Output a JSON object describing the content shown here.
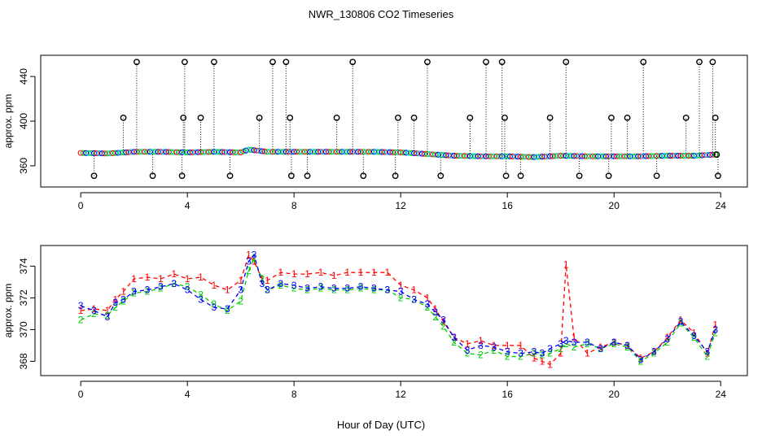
{
  "title": "NWR_130806  CO2 Timeseries",
  "xlabel": "Hour of Day (UTC)",
  "chart_data": [
    {
      "type": "scatter",
      "panel": "top",
      "ylabel": "approx. ppm",
      "xlim": [
        -1.5,
        25.0
      ],
      "ylim": [
        341,
        459
      ],
      "xticks": [
        0,
        4,
        8,
        12,
        16,
        20,
        24
      ],
      "yticks": [
        360,
        400,
        440
      ],
      "baseline_series": [
        {
          "name": "baseline",
          "x": [
            0,
            1,
            2,
            3,
            4,
            5,
            6,
            6.3,
            7,
            8,
            9,
            10,
            11,
            12,
            13,
            14,
            15,
            16,
            17,
            18,
            19,
            20,
            21,
            22,
            23,
            23.8
          ],
          "y": [
            371.5,
            371,
            372.5,
            372.5,
            372,
            372.5,
            372,
            374.5,
            372.5,
            372.5,
            372.5,
            372.5,
            372.5,
            372,
            370.5,
            369,
            368.5,
            368.5,
            367.8,
            369,
            368.5,
            368.5,
            368.5,
            369,
            369,
            370
          ]
        }
      ],
      "outliers": {
        "x": [
          0.5,
          1.6,
          2.1,
          2.7,
          3.8,
          3.85,
          3.9,
          4.5,
          5.0,
          5.6,
          6.7,
          7.2,
          7.7,
          7.85,
          7.9,
          8.5,
          9.6,
          10.2,
          10.6,
          11.8,
          11.9,
          12.5,
          13.0,
          13.5,
          14.6,
          15.2,
          15.8,
          15.9,
          15.95,
          16.5,
          17.6,
          18.2,
          18.7,
          19.8,
          19.9,
          20.5,
          21.1,
          21.6,
          22.7,
          23.2,
          23.7,
          23.8,
          23.85,
          23.9
        ],
        "y": [
          351,
          403,
          453,
          351,
          351,
          403,
          453,
          403,
          453,
          351,
          403,
          453,
          453,
          403,
          351,
          351,
          403,
          453,
          351,
          351,
          403,
          403,
          453,
          351,
          403,
          453,
          453,
          403,
          351,
          351,
          403,
          453,
          351,
          351,
          403,
          403,
          453,
          351,
          403,
          453,
          453,
          403,
          370,
          351
        ]
      }
    },
    {
      "type": "line",
      "panel": "bottom",
      "ylabel": "approx. ppm",
      "xlim": [
        -1.5,
        25.0
      ],
      "ylim": [
        367.1,
        375.3
      ],
      "xticks": [
        0,
        4,
        8,
        12,
        16,
        20,
        24
      ],
      "yticks": [
        368,
        370,
        372,
        374
      ],
      "series": [
        {
          "name": "1",
          "label": "1",
          "color": "#ff0000",
          "x": [
            0,
            0.5,
            1,
            1.3,
            1.6,
            2,
            2.5,
            3,
            3.5,
            4,
            4.5,
            5,
            5.5,
            6,
            6.3,
            6.5,
            6.8,
            7,
            7.5,
            8,
            8.5,
            9,
            9.5,
            10,
            10.5,
            11,
            11.5,
            12,
            12.5,
            13,
            13.3,
            13.6,
            14,
            14.5,
            15,
            15.5,
            16,
            16.5,
            17,
            17.3,
            17.6,
            18,
            18.2,
            18.5,
            19,
            19.5,
            20,
            20.5,
            21,
            21.5,
            22,
            22.5,
            23,
            23.5,
            23.8
          ],
          "y": [
            371.2,
            371.3,
            371.2,
            371.9,
            372.4,
            373.2,
            373.3,
            373.2,
            373.5,
            373.2,
            373.3,
            372.8,
            372.5,
            373.1,
            374.7,
            374.3,
            373.2,
            373.1,
            373.6,
            373.5,
            373.5,
            373.6,
            373.4,
            373.6,
            373.6,
            373.6,
            373.6,
            372.8,
            372.5,
            372,
            371.3,
            370.5,
            369.5,
            369.1,
            369.3,
            369,
            369,
            369,
            368.2,
            368,
            367.8,
            368.5,
            374.1,
            369.5,
            368.5,
            368.9,
            369.2,
            369,
            368.2,
            368.6,
            369.5,
            370.6,
            369.8,
            368.5,
            370.3
          ]
        },
        {
          "name": "2",
          "label": "2",
          "color": "#00cc00",
          "x": [
            0,
            0.5,
            1,
            1.3,
            1.6,
            2,
            2.5,
            3,
            3.5,
            4,
            4.5,
            5,
            5.5,
            6,
            6.3,
            6.5,
            6.8,
            7,
            7.5,
            8,
            8.5,
            9,
            9.5,
            10,
            10.5,
            11,
            11.5,
            12,
            12.5,
            13,
            13.3,
            13.6,
            14,
            14.5,
            15,
            15.5,
            16,
            16.5,
            17,
            17.3,
            17.6,
            18,
            18.2,
            18.5,
            19,
            19.5,
            20,
            20.5,
            21,
            21.5,
            22,
            22.5,
            23,
            23.5,
            23.8
          ],
          "y": [
            370.6,
            371,
            370.9,
            371.4,
            371.8,
            372.3,
            372.4,
            372.6,
            372.9,
            372.7,
            372.2,
            371.6,
            371.2,
            371.8,
            373.7,
            374.5,
            373.2,
            372.5,
            372.8,
            372.6,
            372.5,
            372.6,
            372.5,
            372.5,
            372.6,
            372.5,
            372.5,
            372,
            371.9,
            371.4,
            370.8,
            370.2,
            369.2,
            368.5,
            368.4,
            368.7,
            368.3,
            368.3,
            368.5,
            368.4,
            368.5,
            368.8,
            369.1,
            368.9,
            369.1,
            368.8,
            369.1,
            368.9,
            368,
            368.5,
            369.2,
            370.4,
            369.5,
            368.3,
            369.8
          ]
        },
        {
          "name": "3",
          "label": "3",
          "color": "#0000ff",
          "x": [
            0,
            0.5,
            1,
            1.3,
            1.6,
            2,
            2.5,
            3,
            3.5,
            4,
            4.5,
            5,
            5.5,
            6,
            6.3,
            6.5,
            6.8,
            7,
            7.5,
            8,
            8.5,
            9,
            9.5,
            10,
            10.5,
            11,
            11.5,
            12,
            12.5,
            13,
            13.3,
            13.6,
            14,
            14.5,
            15,
            15.5,
            16,
            16.5,
            17,
            17.3,
            17.6,
            18,
            18.2,
            18.5,
            19,
            19.5,
            20,
            20.5,
            21,
            21.5,
            22,
            22.5,
            23,
            23.5,
            23.8
          ],
          "y": [
            371.5,
            371.2,
            370.8,
            371.7,
            371.9,
            372.4,
            372.5,
            372.7,
            372.9,
            372.5,
            371.9,
            371.4,
            371.3,
            372.5,
            374.3,
            374.7,
            372.9,
            372.5,
            372.9,
            372.8,
            372.6,
            372.7,
            372.6,
            372.6,
            372.7,
            372.6,
            372.5,
            372.4,
            371.9,
            371.6,
            371.1,
            370.6,
            369.5,
            368.7,
            369,
            368.9,
            368.6,
            368.5,
            368.6,
            368.5,
            368.8,
            369.1,
            369.3,
            369.2,
            369.2,
            368.8,
            369.2,
            369,
            368.1,
            368.6,
            369.4,
            370.5,
            369.6,
            368.6,
            370
          ]
        }
      ]
    }
  ]
}
